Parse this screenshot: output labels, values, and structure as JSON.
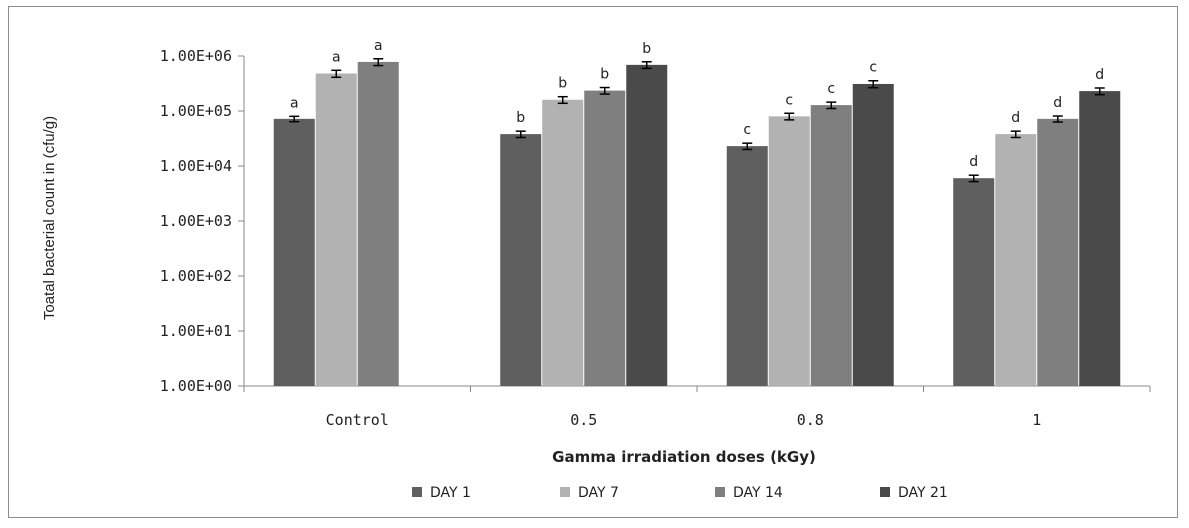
{
  "chart_data": {
    "type": "bar",
    "title": "",
    "xlabel": "Gamma irradiation doses (kGy)",
    "ylabel": "Toatal bacterial count in (cfu/g)",
    "y_scale": "log",
    "ylim": [
      1,
      1000000
    ],
    "y_ticks": [
      "1.00E+00",
      "1.00E+01",
      "1.00E+02",
      "1.00E+03",
      "1.00E+04",
      "1.00E+05",
      "1.00E+06"
    ],
    "categories": [
      "Control",
      "0.5",
      "0.8",
      "1"
    ],
    "series": [
      {
        "name": "DAY 1",
        "color": "#5f5f5f",
        "values": [
          72000,
          38000,
          23000,
          6000
        ],
        "errors": [
          8000,
          5000,
          3000,
          800
        ]
      },
      {
        "name": "DAY 7",
        "color": "#b2b2b2",
        "values": [
          480000,
          160000,
          80000,
          38000
        ],
        "errors": [
          70000,
          22000,
          11000,
          5000
        ]
      },
      {
        "name": "DAY 14",
        "color": "#7f7f7f",
        "values": [
          780000,
          235000,
          128000,
          72000
        ],
        "errors": [
          110000,
          32000,
          17000,
          9000
        ]
      },
      {
        "name": "DAY 21",
        "color": "#4a4a4a",
        "values": [
          null,
          690000,
          310000,
          230000
        ],
        "errors": [
          null,
          95000,
          45000,
          32000
        ]
      }
    ],
    "significance_letters": [
      [
        "a",
        "a",
        "a",
        null
      ],
      [
        "b",
        "b",
        "b",
        "b"
      ],
      [
        "c",
        "c",
        "c",
        "c"
      ],
      [
        "d",
        "d",
        "d",
        "d"
      ]
    ],
    "grid": false,
    "legend_position": "bottom"
  }
}
